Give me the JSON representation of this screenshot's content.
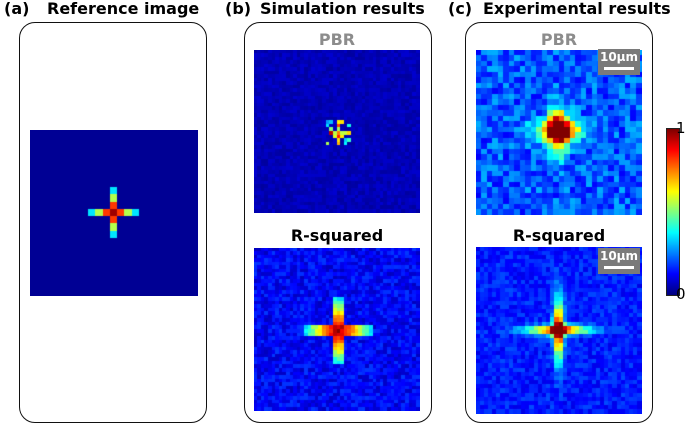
{
  "panels": {
    "a": {
      "tag": "(a)",
      "title": "Reference image"
    },
    "b": {
      "tag": "(b)",
      "title": "Simulation results",
      "top_label": "PBR",
      "bottom_label": "R-squared"
    },
    "c": {
      "tag": "(c)",
      "title": "Experimental results",
      "top_label": "PBR",
      "bottom_label": "R-squared",
      "scalebar_text": "10μm"
    }
  },
  "colorbar": {
    "max_label": "1",
    "min_label": "0"
  },
  "colors": {
    "background": "#000080",
    "peak": "#800000"
  }
}
